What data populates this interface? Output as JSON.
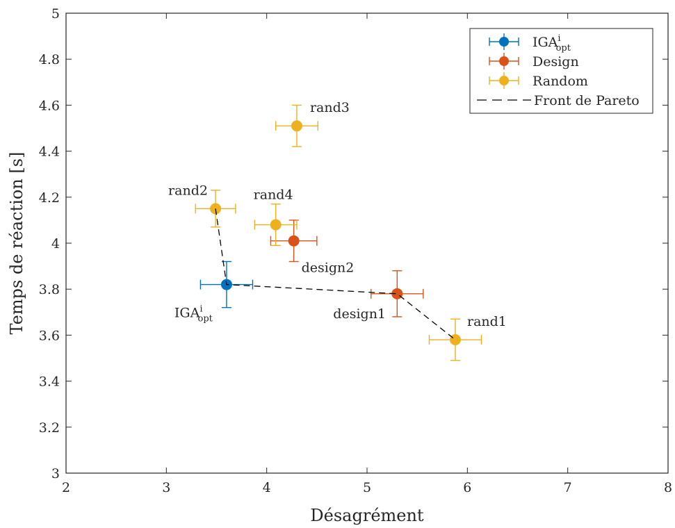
{
  "chart_data": {
    "type": "scatter",
    "xlabel": "Désagrément",
    "ylabel": "Temps de réaction [s]",
    "xlim": [
      2,
      8
    ],
    "ylim": [
      3,
      5
    ],
    "xticks": [
      "2",
      "3",
      "4",
      "5",
      "6",
      "7",
      "8"
    ],
    "yticks": [
      "3",
      "3.2",
      "3.4",
      "3.6",
      "3.8",
      "4",
      "4.2",
      "4.4",
      "4.6",
      "4.8",
      "5"
    ],
    "grid": false,
    "legend_position": "top-right",
    "series": [
      {
        "name": "IGA",
        "name_sup": "i",
        "name_sub": "opt",
        "color": "#0072BD",
        "points": [
          {
            "label": "IGA",
            "label_sup": "i",
            "label_sub": "opt",
            "x": 3.6,
            "y": 3.82,
            "xerr": 0.26,
            "yerr": 0.1
          }
        ]
      },
      {
        "name": "Design",
        "color": "#D95319",
        "points": [
          {
            "label": "design1",
            "x": 5.3,
            "y": 3.78,
            "xerr": 0.26,
            "yerr": 0.1
          },
          {
            "label": "design2",
            "x": 4.27,
            "y": 4.01,
            "xerr": 0.23,
            "yerr": 0.09
          }
        ]
      },
      {
        "name": "Random",
        "color": "#EDB120",
        "points": [
          {
            "label": "rand1",
            "x": 5.88,
            "y": 3.58,
            "xerr": 0.26,
            "yerr": 0.09
          },
          {
            "label": "rand2",
            "x": 3.49,
            "y": 4.15,
            "xerr": 0.2,
            "yerr": 0.08
          },
          {
            "label": "rand3",
            "x": 4.3,
            "y": 4.51,
            "xerr": 0.21,
            "yerr": 0.09
          },
          {
            "label": "rand4",
            "x": 4.09,
            "y": 4.08,
            "xerr": 0.21,
            "yerr": 0.09
          }
        ]
      }
    ],
    "pareto_front": {
      "name": "Front de Pareto",
      "color": "#000000",
      "x": [
        3.49,
        3.6,
        5.3,
        5.88
      ],
      "y": [
        4.15,
        3.82,
        3.78,
        3.58
      ]
    }
  }
}
